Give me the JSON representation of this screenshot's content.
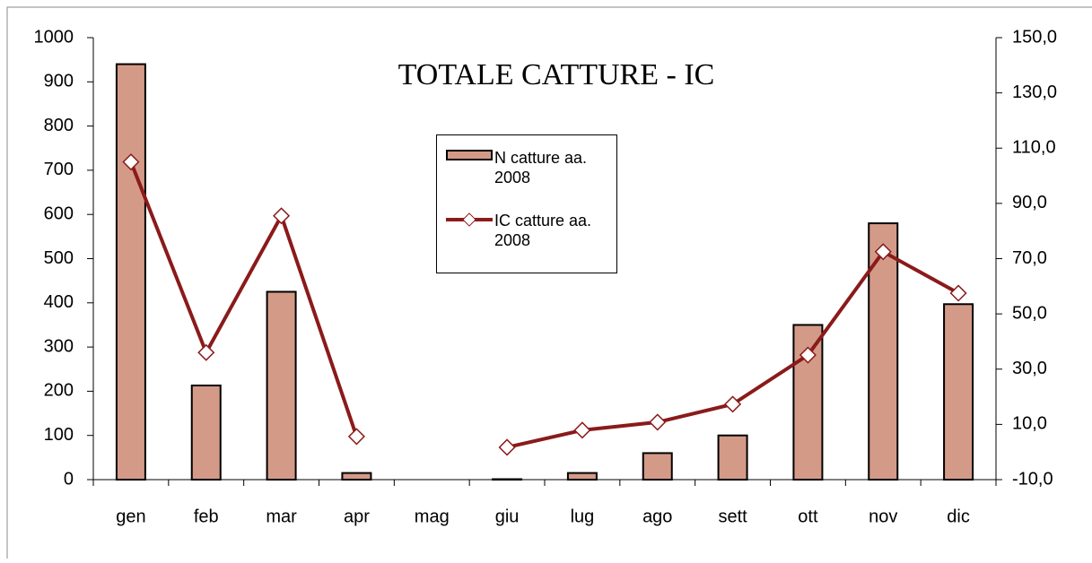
{
  "chart_data": {
    "type": "bar_line",
    "title": "TOTALE CATTURE - IC",
    "categories": [
      "gen",
      "feb",
      "mar",
      "apr",
      "mag",
      "giu",
      "lug",
      "ago",
      "sett",
      "ott",
      "nov",
      "dic"
    ],
    "series": [
      {
        "name": "N catture  aa. 2008",
        "type": "bar",
        "color": "#d49a88",
        "values": [
          940,
          213,
          425,
          15,
          0,
          1,
          15,
          60,
          100,
          350,
          580,
          397
        ]
      },
      {
        "name": "IC catture aa. 2008",
        "type": "line",
        "axis": "y2",
        "color": "#8b1a1a",
        "values": [
          105,
          36,
          85.5,
          5.6,
          null,
          1.7,
          7.9,
          10.8,
          17.3,
          35.1,
          72.5,
          57.5
        ]
      }
    ],
    "ylim": [
      0,
      1000
    ],
    "yticks": [
      0,
      100,
      200,
      300,
      400,
      500,
      600,
      700,
      800,
      900,
      1000
    ],
    "y2lim": [
      -10,
      150
    ],
    "y2ticks": [
      {
        "value": -10,
        "label": "-10,0"
      },
      {
        "value": 10,
        "label": "10,0"
      },
      {
        "value": 30,
        "label": "30,0"
      },
      {
        "value": 50,
        "label": "50,0"
      },
      {
        "value": 70,
        "label": "70,0"
      },
      {
        "value": 90,
        "label": "90,0"
      },
      {
        "value": 110,
        "label": "110,0"
      },
      {
        "value": 130,
        "label": "130,0"
      },
      {
        "value": 150,
        "label": "150,0"
      }
    ],
    "grid": false
  }
}
